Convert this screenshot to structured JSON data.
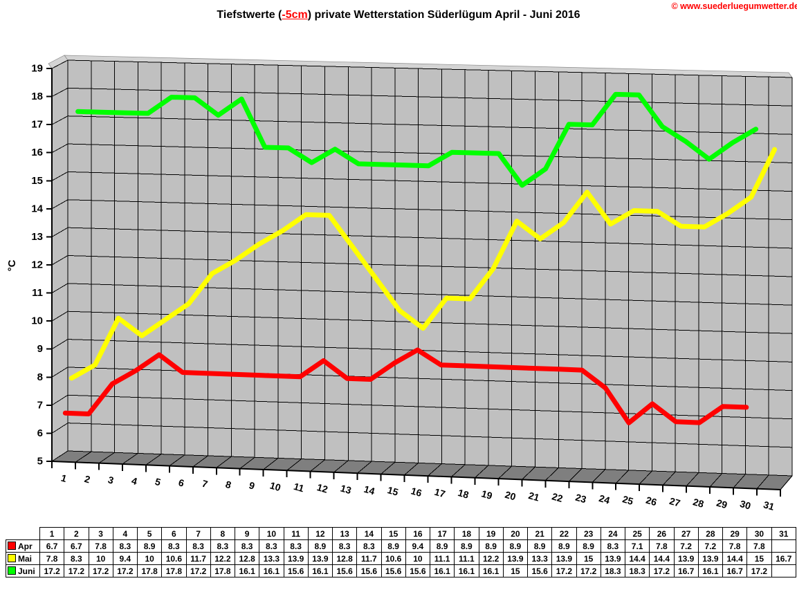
{
  "title": {
    "prefix": "Tiefstwerte (",
    "highlight": "-5cm",
    "suffix": ") private Wetterstation Süderlügum April - Juni 2016"
  },
  "copyright": "© www.suederluegumwetter.de",
  "chart_data": {
    "type": "line",
    "title": "Tiefstwerte (-5cm) private Wetterstation Süderlügum April - Juni 2016",
    "xlabel": "",
    "ylabel": "°C",
    "ylim": [
      5,
      19
    ],
    "ytick_step": 1,
    "grid": true,
    "legend_position": "table-left",
    "style_3d": true,
    "wall_color": "#c0c0c0",
    "floor_color": "#7f7f7f",
    "cap_color": "#d4d4d4",
    "gridline_color": "#000000",
    "categories": [
      1,
      2,
      3,
      4,
      5,
      6,
      7,
      8,
      9,
      10,
      11,
      12,
      13,
      14,
      15,
      16,
      17,
      18,
      19,
      20,
      21,
      22,
      23,
      24,
      25,
      26,
      27,
      28,
      29,
      30,
      31
    ],
    "series": [
      {
        "name": "Apr",
        "color": "#ff0000",
        "values": [
          "6.7",
          "6.7",
          "7.8",
          "8.3",
          "8.9",
          "8.3",
          "8.3",
          "8.3",
          "8.3",
          "8.3",
          "8.3",
          "8.9",
          "8.3",
          "8.3",
          "8.9",
          "9.4",
          "8.9",
          "8.9",
          "8.9",
          "8.9",
          "8.9",
          "8.9",
          "8.9",
          "8.3",
          "7.1",
          "7.8",
          "7.2",
          "7.2",
          "7.8",
          "7.8",
          null
        ]
      },
      {
        "name": "Mai",
        "color": "#ffff00",
        "values": [
          "7.8",
          "8.3",
          "10",
          "9.4",
          "10",
          "10.6",
          "11.7",
          "12.2",
          "12.8",
          "13.3",
          "13.9",
          "13.9",
          "12.8",
          "11.7",
          "10.6",
          "10",
          "11.1",
          "11.1",
          "12.2",
          "13.9",
          "13.3",
          "13.9",
          "15",
          "13.9",
          "14.4",
          "14.4",
          "13.9",
          "13.9",
          "14.4",
          "15",
          "16.7"
        ]
      },
      {
        "name": "Juni",
        "color": "#00ff00",
        "values": [
          "17.2",
          "17.2",
          "17.2",
          "17.2",
          "17.8",
          "17.8",
          "17.2",
          "17.8",
          "16.1",
          "16.1",
          "15.6",
          "16.1",
          "15.6",
          "15.6",
          "15.6",
          "15.6",
          "16.1",
          "16.1",
          "16.1",
          "15",
          "15.6",
          "17.2",
          "17.2",
          "18.3",
          "18.3",
          "17.2",
          "16.7",
          "16.1",
          "16.7",
          "17.2",
          null
        ]
      }
    ]
  }
}
